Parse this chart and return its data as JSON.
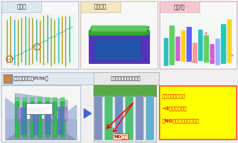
{
  "bg_color": "#f0f0f0",
  "top_panels": [
    {
      "label": "冷却穴",
      "label_bg": "#dde8f0",
      "border": "#aabbcc"
    },
    {
      "label": "製品形状",
      "label_bg": "#f5e6c0",
      "border": "#ccbbaa"
    },
    {
      "label": "部品/穴",
      "label_bg": "#f5c8d0",
      "border": "#ccaabb"
    }
  ],
  "bl_label": "干渉チェック〈ifchk〉",
  "bc_label": "【クリアランス不足部】",
  "ng_label": "NG箇所",
  "right_lines": [
    "【干渉チェック】",
    "→3デで確認実施",
    "　NG部は修正して再確認"
  ],
  "right_box_bg": "#ffff00",
  "right_box_edge": "#ff4444",
  "right_text_color": "#ff0000",
  "arrow_fill": "#4466dd"
}
